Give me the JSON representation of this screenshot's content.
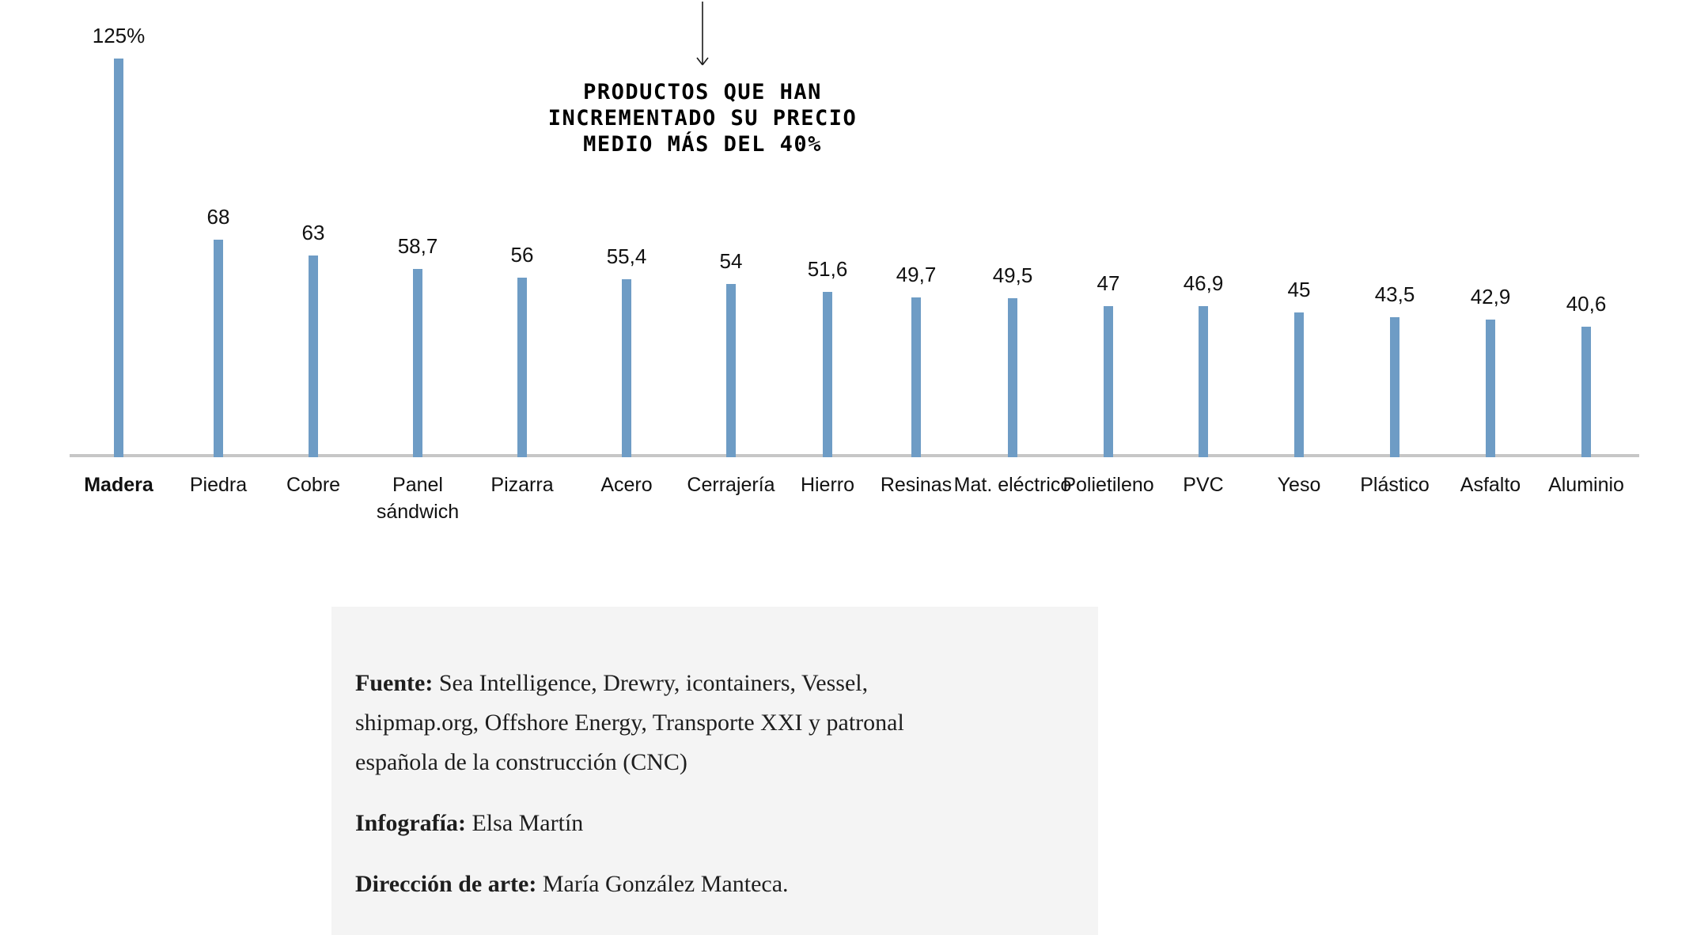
{
  "chart_data": {
    "type": "bar",
    "title": "PRODUCTOS QUE HAN\nINCREMENTADO SU PRECIO\nMEDIO MÁS DEL 40%",
    "categories": [
      "Madera",
      "Piedra",
      "Cobre",
      "Panel sándwich",
      "Pizarra",
      "Acero",
      "Cerrajería",
      "Hierro",
      "Resinas",
      "Mat. eléctrico",
      "Polietileno",
      "PVC",
      "Yeso",
      "Plástico",
      "Asfalto",
      "Aluminio"
    ],
    "values": [
      125,
      68,
      63,
      58.7,
      56,
      55.4,
      54,
      51.6,
      49.7,
      49.5,
      47,
      46.9,
      45,
      43.5,
      42.9,
      40.6
    ],
    "display_values": [
      "125%",
      "68",
      "63",
      "58,7",
      "56",
      "55,4",
      "54",
      "51,6",
      "49,7",
      "49,5",
      "47",
      "46,9",
      "45",
      "43,5",
      "42,9",
      "40,6"
    ],
    "unit": "%",
    "highlighted_category": "Madera",
    "bar_color": "#6E9CC5",
    "axis_color": "#C6C6C6",
    "ylim": [
      0,
      130
    ],
    "grid": "off",
    "legend": "none"
  },
  "footer": {
    "background": "#F4F4F4",
    "paragraphs": [
      {
        "label": "Fuente:",
        "text": " Sea Intelligence, Drewry, icontainers, Vessel,\nshipmap.org, Offshore Energy, Transporte XXI y patronal\nespañola de la construcción (CNC)"
      },
      {
        "label": "Infografía:",
        "text": " Elsa Martín"
      },
      {
        "label": "Dirección de arte:",
        "text": " María González Manteca."
      }
    ]
  }
}
